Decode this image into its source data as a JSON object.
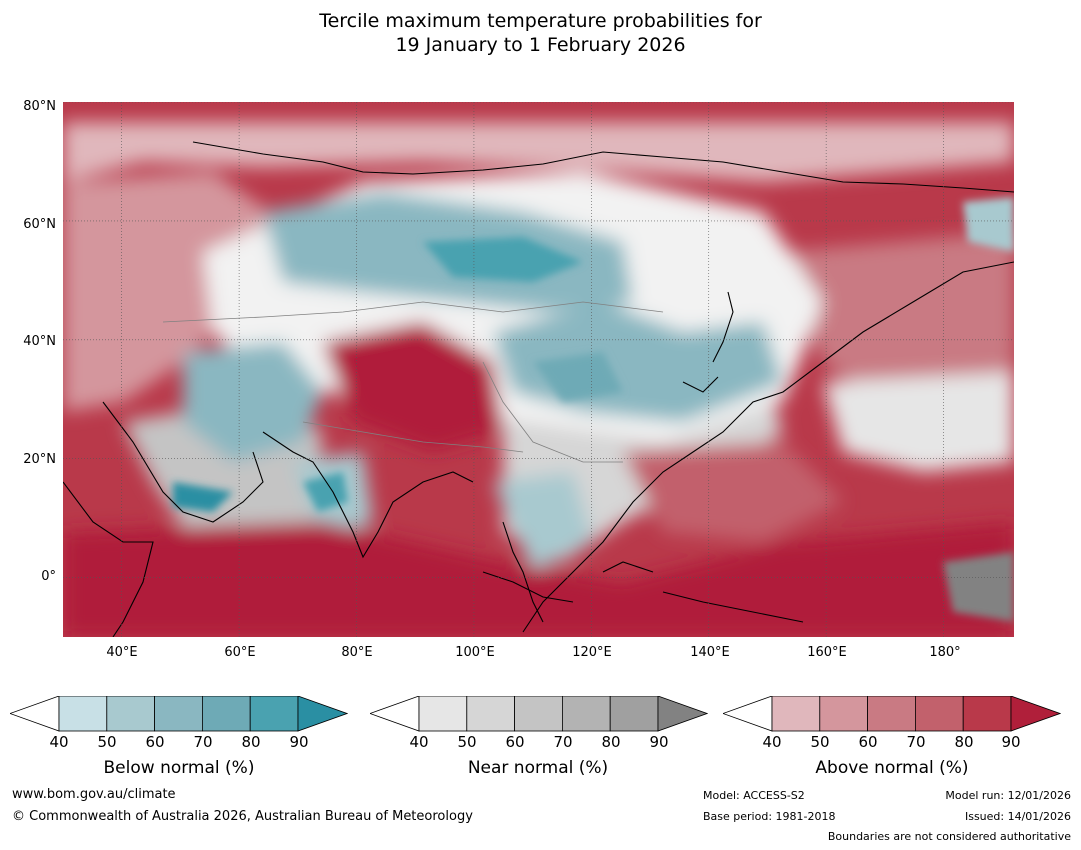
{
  "title": {
    "line1": "Tercile maximum temperature probabilities for",
    "line2": "19 January to 1 February 2026"
  },
  "map": {
    "lat_labels": [
      "80°N",
      "60°N",
      "40°N",
      "20°N",
      "0°"
    ],
    "lon_labels": [
      "40°E",
      "60°E",
      "80°E",
      "100°E",
      "120°E",
      "140°E",
      "160°E",
      "180°"
    ],
    "lat_range": [
      -10,
      80
    ],
    "lon_range": [
      30,
      192
    ]
  },
  "colorbars": [
    {
      "name": "below",
      "label": "Below normal (%)",
      "ticks": [
        "40",
        "50",
        "60",
        "70",
        "80",
        "90"
      ],
      "colors": [
        "#ffffff",
        "#c8e0e6",
        "#a8c9cf",
        "#8ab7c1",
        "#6eaab6",
        "#4aa2b0",
        "#2a8fa3"
      ]
    },
    {
      "name": "near",
      "label": "Near normal (%)",
      "ticks": [
        "40",
        "50",
        "60",
        "70",
        "80",
        "90"
      ],
      "colors": [
        "#ffffff",
        "#e6e6e6",
        "#d6d6d6",
        "#c4c4c4",
        "#b3b3b3",
        "#a0a0a0",
        "#828282"
      ]
    },
    {
      "name": "above",
      "label": "Above normal (%)",
      "ticks": [
        "40",
        "50",
        "60",
        "70",
        "80",
        "90"
      ],
      "colors": [
        "#ffffff",
        "#e0b7bc",
        "#d4969d",
        "#c97a83",
        "#c2616c",
        "#b9394a",
        "#b01f3a"
      ]
    }
  ],
  "footer": {
    "website": "www.bom.gov.au/climate",
    "copyright": "© Commonwealth of Australia 2026, Australian Bureau of Meteorology",
    "model": "Model: ACCESS-S2",
    "base_period": "Base period: 1981-2018",
    "model_run": "Model run: 12/01/2026",
    "issued": "Issued: 14/01/2026",
    "disclaimer": "Boundaries are not considered authoritative"
  }
}
